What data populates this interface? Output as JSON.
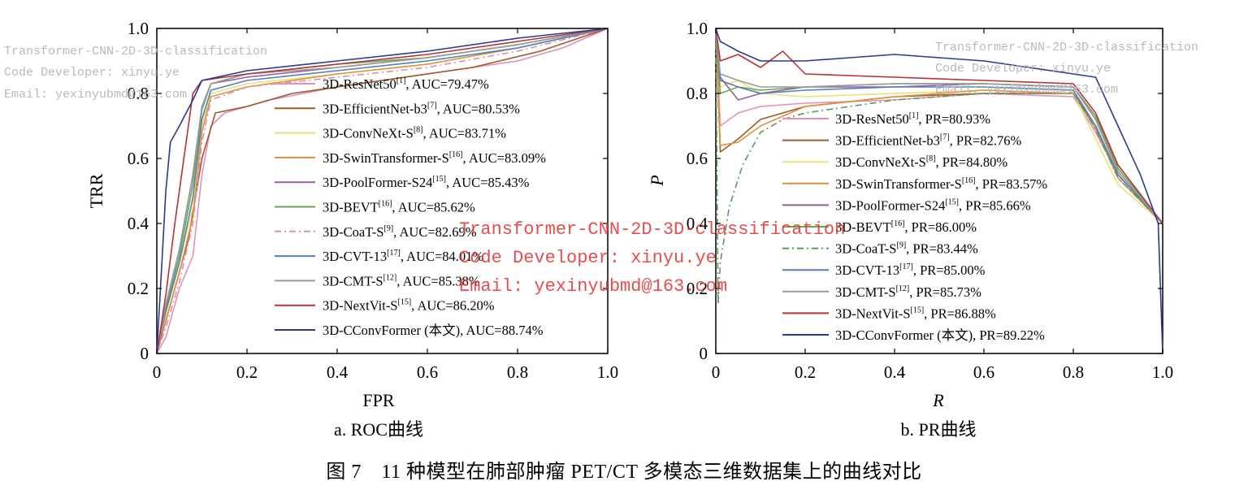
{
  "figure": {
    "caption": "图 7　11 种模型在肺部肿瘤 PET/CT 多模态三维数据集上的曲线对比"
  },
  "watermark": {
    "line1": "Transformer-CNN-2D-3D-classification",
    "line2": "Code Developer: xinyu.ye",
    "line3": "Email: yexinyubmd@163.com"
  },
  "chart_data": [
    {
      "type": "line",
      "subplot_title": "a. ROC曲线",
      "xlabel": "FPR",
      "ylabel": "TRR",
      "xlim": [
        0,
        1
      ],
      "ylim": [
        0,
        1
      ],
      "xticks": [
        "0",
        "0.2",
        "0.4",
        "0.6",
        "0.8",
        "1.0"
      ],
      "yticks": [
        "0",
        "0.2",
        "0.4",
        "0.6",
        "0.8",
        "1.0"
      ],
      "legend_position": "center-right",
      "grid": false,
      "series": [
        {
          "name": "3D-ResNet50",
          "ref": "[1]",
          "metric": ", AUC=79.47%",
          "color": "#e58fb8",
          "dash": "",
          "x": [
            0,
            0.02,
            0.05,
            0.08,
            0.1,
            0.12,
            0.15,
            0.25,
            0.4,
            0.6,
            0.8,
            0.9,
            1.0
          ],
          "y": [
            0,
            0.05,
            0.2,
            0.3,
            0.55,
            0.7,
            0.74,
            0.78,
            0.82,
            0.86,
            0.9,
            0.94,
            1.0
          ]
        },
        {
          "name": "3D-EfficientNet-b3",
          "ref": "[7]",
          "metric": ", AUC=80.53%",
          "color": "#9c5a2a",
          "dash": "",
          "x": [
            0,
            0.02,
            0.04,
            0.07,
            0.1,
            0.13,
            0.2,
            0.3,
            0.5,
            0.7,
            0.85,
            1.0
          ],
          "y": [
            0,
            0.1,
            0.2,
            0.35,
            0.6,
            0.74,
            0.76,
            0.8,
            0.84,
            0.88,
            0.93,
            1.0
          ]
        },
        {
          "name": "3D-ConvNeXt-S",
          "ref": "[8]",
          "metric": ", AUC=83.71%",
          "color": "#e8e27a",
          "dash": "",
          "x": [
            0,
            0.02,
            0.05,
            0.08,
            0.1,
            0.12,
            0.2,
            0.4,
            0.6,
            0.8,
            1.0
          ],
          "y": [
            0,
            0.12,
            0.28,
            0.45,
            0.7,
            0.8,
            0.83,
            0.86,
            0.89,
            0.94,
            1.0
          ]
        },
        {
          "name": "3D-SwinTransformer-S",
          "ref": "[16]",
          "metric": ", AUC=83.09%",
          "color": "#e0903b",
          "dash": "",
          "x": [
            0,
            0.02,
            0.05,
            0.08,
            0.1,
            0.12,
            0.2,
            0.4,
            0.6,
            0.8,
            1.0
          ],
          "y": [
            0,
            0.1,
            0.25,
            0.42,
            0.68,
            0.79,
            0.82,
            0.86,
            0.89,
            0.94,
            1.0
          ]
        },
        {
          "name": "3D-PoolFormer-S24",
          "ref": "[15]",
          "metric": ", AUC=85.43%",
          "color": "#9a5aa8",
          "dash": "",
          "x": [
            0,
            0.02,
            0.05,
            0.08,
            0.1,
            0.12,
            0.2,
            0.4,
            0.6,
            0.8,
            1.0
          ],
          "y": [
            0,
            0.15,
            0.32,
            0.55,
            0.76,
            0.83,
            0.85,
            0.88,
            0.91,
            0.95,
            1.0
          ]
        },
        {
          "name": "3D-BEVT",
          "ref": "[16]",
          "metric": ", AUC=85.62%",
          "color": "#6aa84f",
          "dash": "",
          "x": [
            0,
            0.02,
            0.05,
            0.08,
            0.1,
            0.12,
            0.2,
            0.4,
            0.6,
            0.8,
            1.0
          ],
          "y": [
            0,
            0.14,
            0.3,
            0.52,
            0.75,
            0.83,
            0.86,
            0.89,
            0.91,
            0.95,
            1.0
          ]
        },
        {
          "name": "3D-CoaT-S",
          "ref": "[9]",
          "metric": ", AUC=82.69%",
          "color": "#d98fb0",
          "dash": "8,4,2,4",
          "x": [
            0,
            0.02,
            0.05,
            0.08,
            0.1,
            0.12,
            0.2,
            0.4,
            0.6,
            0.8,
            1.0
          ],
          "y": [
            0,
            0.08,
            0.22,
            0.4,
            0.65,
            0.78,
            0.82,
            0.85,
            0.88,
            0.93,
            1.0
          ]
        },
        {
          "name": "3D-CVT-13",
          "ref": "[17]",
          "metric": ", AUC=84.01%",
          "color": "#4f7fbf",
          "dash": "",
          "x": [
            0,
            0.02,
            0.05,
            0.08,
            0.1,
            0.12,
            0.2,
            0.4,
            0.6,
            0.8,
            1.0
          ],
          "y": [
            0,
            0.13,
            0.28,
            0.48,
            0.72,
            0.81,
            0.84,
            0.87,
            0.9,
            0.94,
            1.0
          ]
        },
        {
          "name": "3D-CMT-S",
          "ref": "[12]",
          "metric": ", AUC=85.38%",
          "color": "#9a9a9a",
          "dash": "",
          "x": [
            0,
            0.02,
            0.05,
            0.08,
            0.1,
            0.12,
            0.2,
            0.4,
            0.6,
            0.8,
            1.0
          ],
          "y": [
            0,
            0.15,
            0.32,
            0.55,
            0.76,
            0.83,
            0.86,
            0.88,
            0.91,
            0.95,
            1.0
          ]
        },
        {
          "name": "3D-NextVit-S",
          "ref": "[15]",
          "metric": ", AUC=86.20%",
          "color": "#b83232",
          "dash": "",
          "x": [
            0,
            0.02,
            0.04,
            0.06,
            0.08,
            0.1,
            0.2,
            0.4,
            0.6,
            0.8,
            1.0
          ],
          "y": [
            0,
            0.18,
            0.4,
            0.6,
            0.8,
            0.84,
            0.86,
            0.89,
            0.92,
            0.96,
            1.0
          ]
        },
        {
          "name": "3D-CConvFormer (本文)",
          "ref": "",
          "metric": ", AUC=88.74%",
          "color": "#2a3a8f",
          "dash": "",
          "x": [
            0,
            0.01,
            0.02,
            0.03,
            0.05,
            0.08,
            0.1,
            0.2,
            0.4,
            0.6,
            0.8,
            1.0
          ],
          "y": [
            0,
            0.25,
            0.5,
            0.65,
            0.7,
            0.78,
            0.84,
            0.87,
            0.9,
            0.93,
            0.97,
            1.0
          ]
        }
      ]
    },
    {
      "type": "line",
      "subplot_title": "b. PR曲线",
      "xlabel": "R",
      "ylabel": "P",
      "xlim": [
        0,
        1
      ],
      "ylim": [
        0,
        1
      ],
      "xticks": [
        "0",
        "0.2",
        "0.4",
        "0.6",
        "0.8",
        "1.0"
      ],
      "yticks": [
        "0",
        "0.2",
        "0.4",
        "0.6",
        "0.8",
        "1.0"
      ],
      "legend_position": "center-right",
      "grid": false,
      "series": [
        {
          "name": "3D-ResNet50",
          "ref": "[1]",
          "metric": ", PR=80.93%",
          "color": "#e58fb8",
          "dash": "",
          "x": [
            0,
            0.01,
            0.05,
            0.1,
            0.2,
            0.4,
            0.6,
            0.8,
            0.85,
            0.9,
            1.0
          ],
          "y": [
            1.0,
            0.7,
            0.74,
            0.76,
            0.77,
            0.78,
            0.8,
            0.79,
            0.68,
            0.55,
            0.4
          ]
        },
        {
          "name": "3D-EfficientNet-b3",
          "ref": "[7]",
          "metric": ", PR=82.76%",
          "color": "#9c5a2a",
          "dash": "",
          "x": [
            0,
            0.01,
            0.05,
            0.1,
            0.2,
            0.4,
            0.6,
            0.8,
            0.85,
            0.9,
            1.0
          ],
          "y": [
            1.0,
            0.62,
            0.66,
            0.72,
            0.76,
            0.79,
            0.8,
            0.8,
            0.7,
            0.55,
            0.4
          ]
        },
        {
          "name": "3D-ConvNeXt-S",
          "ref": "[8]",
          "metric": ", PR=84.80%",
          "color": "#e8e27a",
          "dash": "",
          "x": [
            0,
            0.01,
            0.05,
            0.1,
            0.2,
            0.4,
            0.6,
            0.8,
            0.85,
            0.9,
            1.0
          ],
          "y": [
            1.0,
            0.82,
            0.84,
            0.8,
            0.79,
            0.8,
            0.81,
            0.8,
            0.66,
            0.52,
            0.4
          ]
        },
        {
          "name": "3D-SwinTransformer-S",
          "ref": "[16]",
          "metric": ", PR=83.57%",
          "color": "#e0903b",
          "dash": "",
          "x": [
            0,
            0.01,
            0.05,
            0.1,
            0.2,
            0.4,
            0.6,
            0.8,
            0.85,
            0.9,
            1.0
          ],
          "y": [
            1.0,
            0.64,
            0.65,
            0.7,
            0.76,
            0.79,
            0.81,
            0.8,
            0.69,
            0.54,
            0.4
          ]
        },
        {
          "name": "3D-PoolFormer-S24",
          "ref": "[15]",
          "metric": ", PR=85.66%",
          "color": "#9a5aa8",
          "dash": "",
          "x": [
            0,
            0.01,
            0.05,
            0.1,
            0.2,
            0.4,
            0.6,
            0.8,
            0.85,
            0.9,
            1.0
          ],
          "y": [
            1.0,
            0.85,
            0.78,
            0.8,
            0.82,
            0.82,
            0.83,
            0.82,
            0.72,
            0.56,
            0.4
          ]
        },
        {
          "name": "3D-BEVT",
          "ref": "[16]",
          "metric": ", PR=86.00%",
          "color": "#6aa84f",
          "dash": "",
          "x": [
            0,
            0.01,
            0.05,
            0.1,
            0.2,
            0.4,
            0.6,
            0.8,
            0.85,
            0.9,
            1.0
          ],
          "y": [
            1.0,
            0.8,
            0.82,
            0.81,
            0.82,
            0.83,
            0.83,
            0.82,
            0.73,
            0.57,
            0.4
          ]
        },
        {
          "name": "3D-CoaT-S",
          "ref": "[9]",
          "metric": ", PR=83.44%",
          "color": "#5a9a5a",
          "dash": "8,4,2,4",
          "x": [
            0,
            0.005,
            0.01,
            0.03,
            0.06,
            0.1,
            0.15,
            0.2,
            0.4,
            0.6,
            0.8,
            0.85,
            0.9,
            1.0
          ],
          "y": [
            1.0,
            0.15,
            0.28,
            0.45,
            0.58,
            0.68,
            0.72,
            0.74,
            0.78,
            0.8,
            0.8,
            0.69,
            0.54,
            0.4
          ]
        },
        {
          "name": "3D-CVT-13",
          "ref": "[17]",
          "metric": ", PR=85.00%",
          "color": "#4f7fbf",
          "dash": "",
          "x": [
            0,
            0.01,
            0.05,
            0.1,
            0.2,
            0.4,
            0.6,
            0.8,
            0.85,
            0.9,
            1.0
          ],
          "y": [
            1.0,
            0.84,
            0.82,
            0.8,
            0.81,
            0.82,
            0.82,
            0.81,
            0.7,
            0.55,
            0.4
          ]
        },
        {
          "name": "3D-CMT-S",
          "ref": "[12]",
          "metric": ", PR=85.73%",
          "color": "#9a9a9a",
          "dash": "",
          "x": [
            0,
            0.01,
            0.05,
            0.1,
            0.2,
            0.4,
            0.6,
            0.8,
            0.85,
            0.9,
            1.0
          ],
          "y": [
            1.0,
            0.86,
            0.84,
            0.82,
            0.82,
            0.83,
            0.83,
            0.82,
            0.72,
            0.56,
            0.4
          ]
        },
        {
          "name": "3D-NextVit-S",
          "ref": "[15]",
          "metric": ", PR=86.88%",
          "color": "#b83232",
          "dash": "",
          "x": [
            0,
            0.01,
            0.05,
            0.1,
            0.15,
            0.2,
            0.4,
            0.6,
            0.8,
            0.85,
            0.9,
            1.0
          ],
          "y": [
            1.0,
            0.9,
            0.92,
            0.88,
            0.93,
            0.86,
            0.85,
            0.84,
            0.83,
            0.74,
            0.58,
            0.4
          ]
        },
        {
          "name": "3D-CConvFormer (本文)",
          "ref": "",
          "metric": ", PR=89.22%",
          "color": "#2a3a8f",
          "dash": "",
          "x": [
            0,
            0.01,
            0.05,
            0.1,
            0.2,
            0.3,
            0.4,
            0.5,
            0.6,
            0.7,
            0.8,
            0.85,
            0.9,
            0.95,
            0.99,
            1.0
          ],
          "y": [
            1.0,
            0.96,
            0.93,
            0.9,
            0.9,
            0.91,
            0.92,
            0.91,
            0.9,
            0.88,
            0.86,
            0.85,
            0.7,
            0.55,
            0.4,
            0.0
          ]
        }
      ]
    }
  ]
}
